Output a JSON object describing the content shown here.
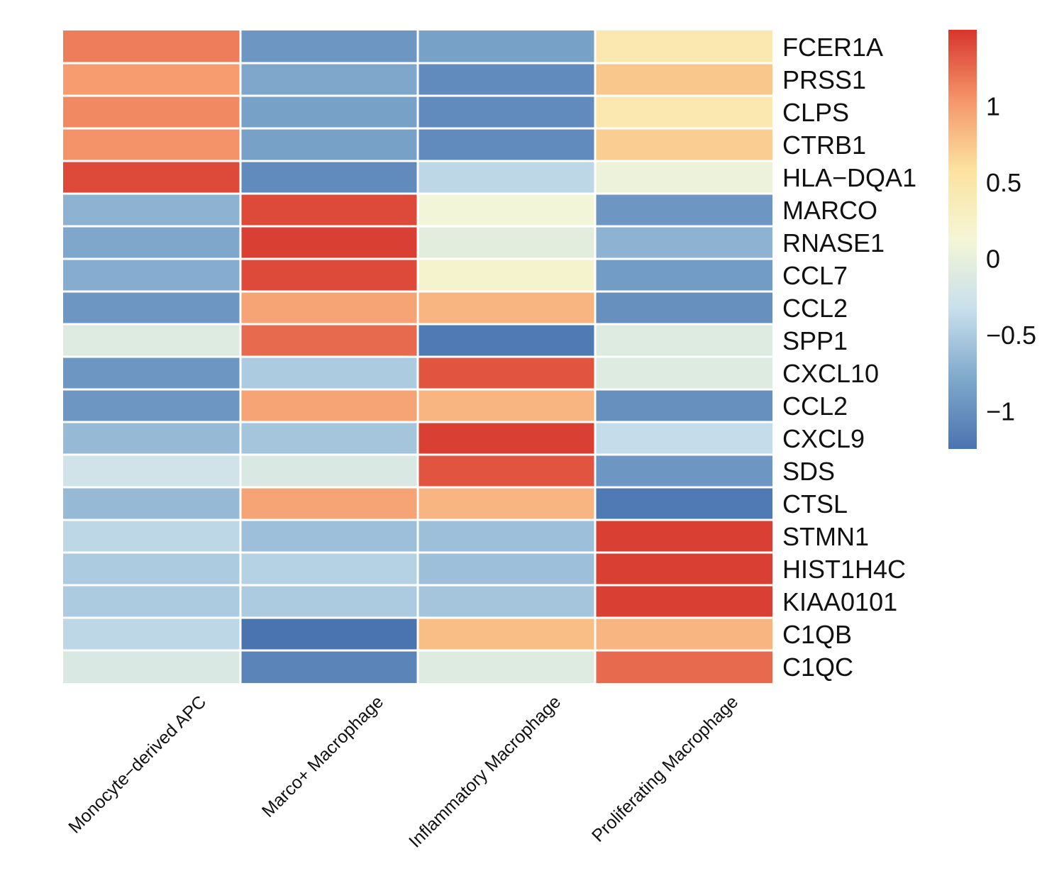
{
  "chart_data": {
    "type": "heatmap",
    "title": "",
    "rows": [
      "FCER1A",
      "PRSS1",
      "CLPS",
      "CTRB1",
      "HLA−DQA1",
      "MARCO",
      "RNASE1",
      "CCL7",
      "CCL2",
      "SPP1",
      "CXCL10",
      "CCL2",
      "CXCL9",
      "SDS",
      "CTSL",
      "STMN1",
      "HIST1H4C",
      "KIAA0101",
      "C1QB",
      "C1QC"
    ],
    "columns": [
      "Monocyte−derived APC",
      "Marco+ Macrophage",
      "Inflammatory Macrophage",
      "Proliferating Macrophage"
    ],
    "values": [
      [
        1.15,
        -0.95,
        -0.85,
        0.45
      ],
      [
        1.0,
        -0.8,
        -1.05,
        0.75
      ],
      [
        1.1,
        -0.85,
        -1.05,
        0.45
      ],
      [
        1.05,
        -0.85,
        -1.05,
        0.7
      ],
      [
        1.4,
        -1.05,
        -0.4,
        0.05
      ],
      [
        -0.7,
        1.4,
        0.1,
        -0.95
      ],
      [
        -0.8,
        1.45,
        -0.05,
        -0.7
      ],
      [
        -0.75,
        1.4,
        0.2,
        -0.9
      ],
      [
        -0.95,
        0.95,
        0.85,
        -1.0
      ],
      [
        -0.1,
        1.25,
        -1.2,
        -0.1
      ],
      [
        -0.95,
        -0.5,
        1.35,
        -0.1
      ],
      [
        -0.95,
        0.95,
        0.85,
        -1.0
      ],
      [
        -0.65,
        -0.55,
        1.45,
        -0.35
      ],
      [
        -0.25,
        -0.15,
        1.35,
        -0.95
      ],
      [
        -0.65,
        0.95,
        0.85,
        -1.2
      ],
      [
        -0.4,
        -0.6,
        -0.6,
        1.45
      ],
      [
        -0.5,
        -0.45,
        -0.6,
        1.45
      ],
      [
        -0.5,
        -0.5,
        -0.55,
        1.45
      ],
      [
        -0.4,
        -1.3,
        0.8,
        0.85
      ],
      [
        -0.15,
        -1.1,
        -0.1,
        1.25
      ]
    ],
    "colorbar": {
      "min": -1.25,
      "max": 1.5,
      "ticks": [
        1,
        0.5,
        0,
        -0.5,
        -1
      ],
      "tick_labels": [
        "1",
        "0.5",
        "0",
        "−0.5",
        "−1"
      ],
      "colors": [
        "#4a74b0",
        "#7fa8cc",
        "#c8dfec",
        "#f4f6d6",
        "#fce2a0",
        "#f5956a",
        "#d7352c"
      ]
    }
  }
}
